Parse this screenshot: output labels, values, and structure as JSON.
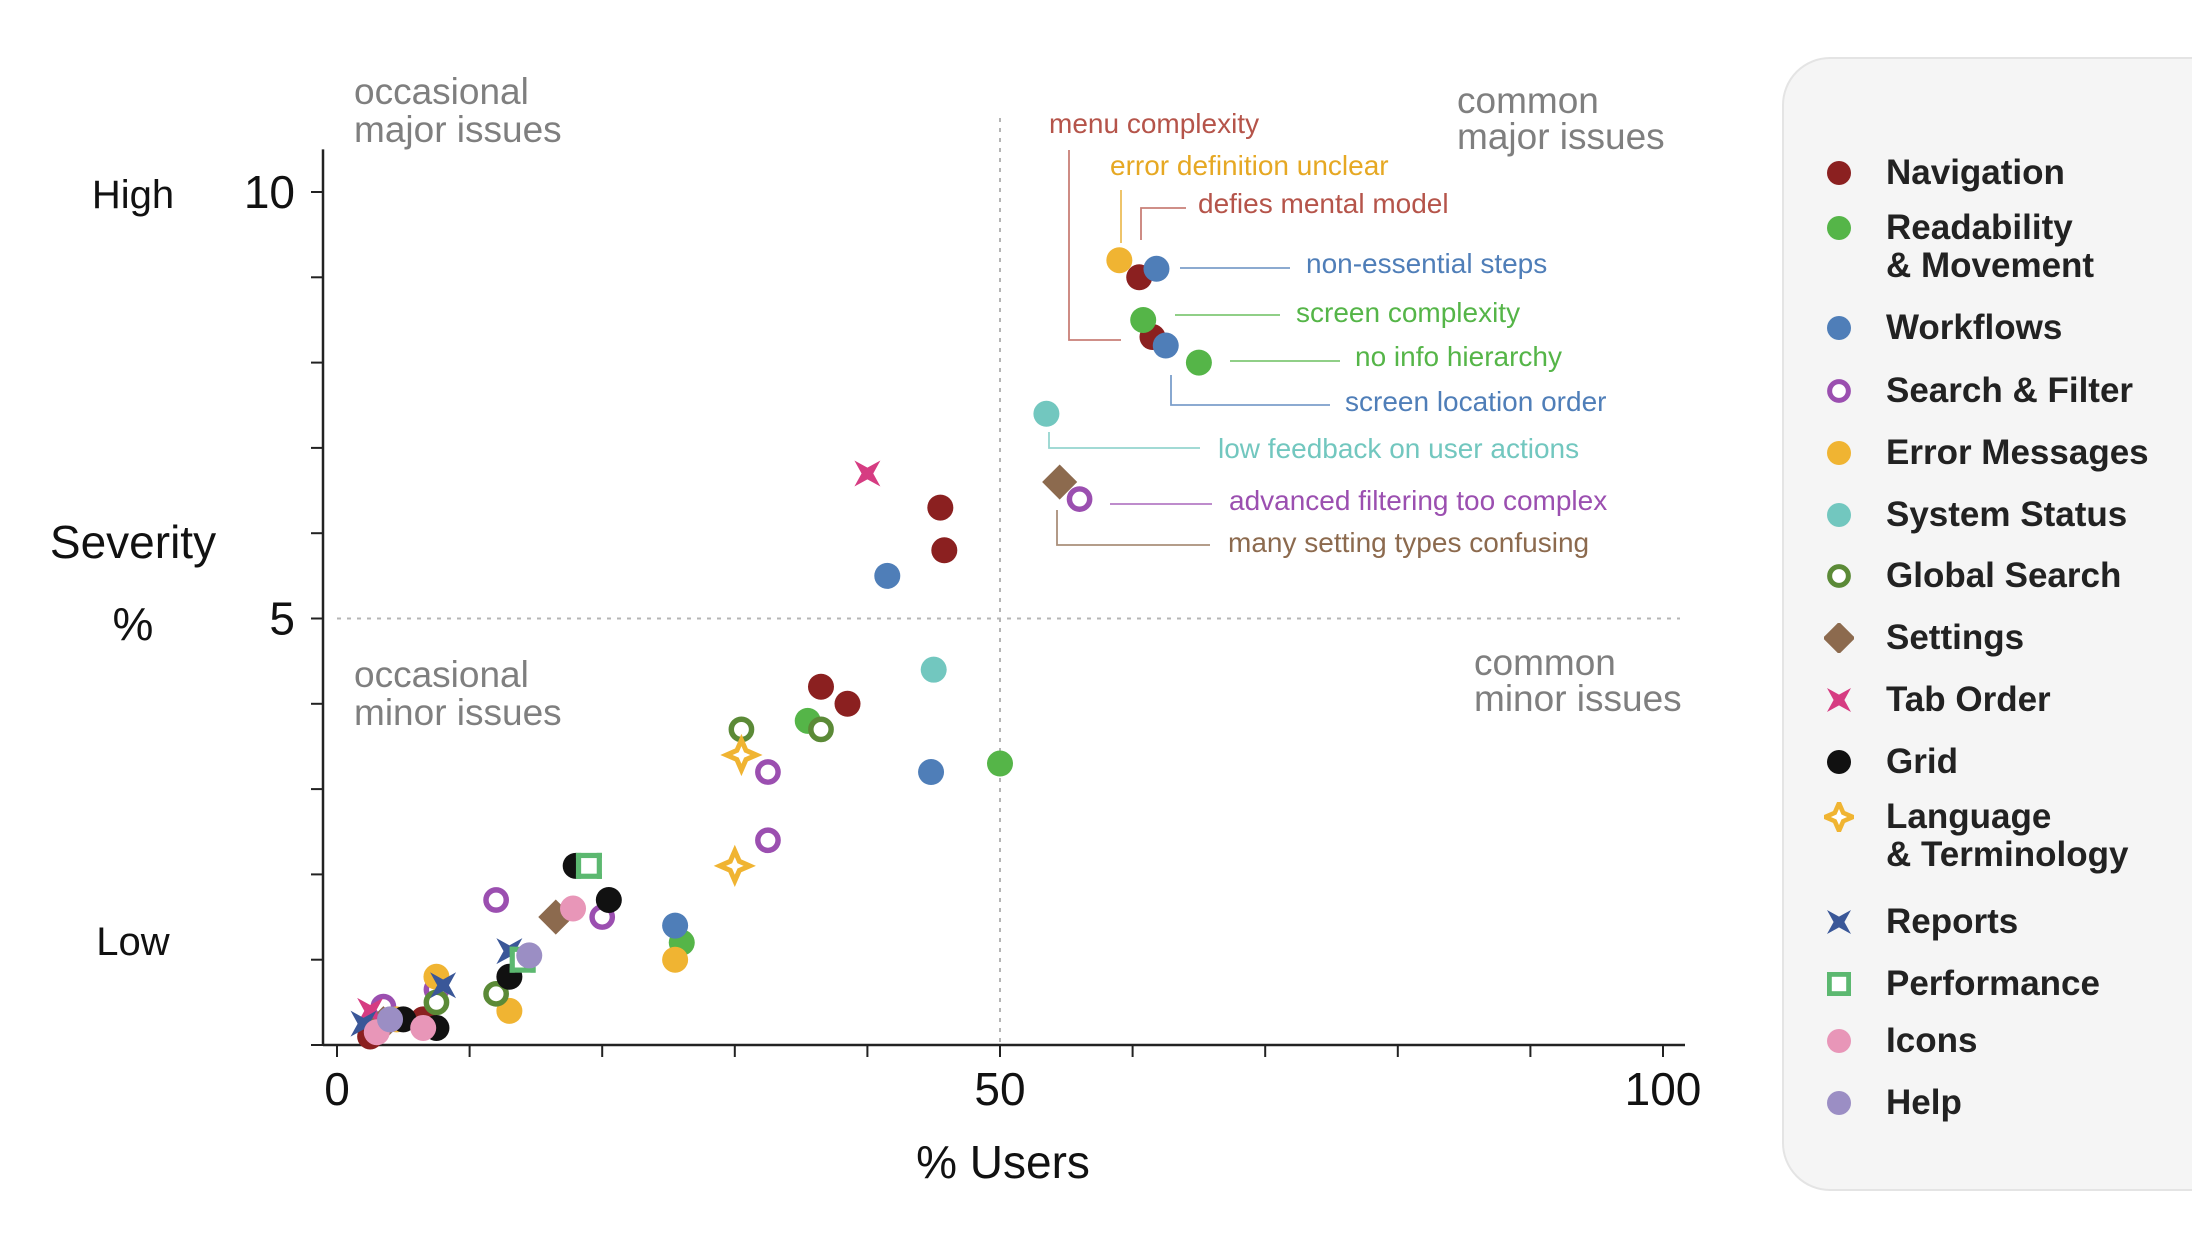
{
  "chart_data": {
    "type": "scatter",
    "xlabel": "% Users",
    "ylabel": "Severity",
    "ylabel_unit": "%",
    "xlim": [
      0,
      100
    ],
    "ylim": [
      0,
      10.5
    ],
    "xticks": [
      "0",
      "50",
      "100"
    ],
    "yticks": [
      "5",
      "10"
    ],
    "y_level_labels": {
      "high": "High",
      "low": "Low"
    },
    "grid": false,
    "reference_lines": {
      "x": 50,
      "y": 5
    },
    "legend_position": "right",
    "quadrant_labels": {
      "top_left": "occasional\nmajor issues",
      "top_right": "common\nmajor issues",
      "bottom_left": "occasional\nminor issues",
      "bottom_right": "common\nminor issues"
    },
    "series": [
      {
        "name": "Navigation",
        "marker": "circle",
        "color": "#8b2020",
        "points": [
          [
            60.5,
            9.0
          ],
          [
            61.5,
            8.3
          ],
          [
            45.5,
            6.3
          ],
          [
            45.8,
            5.8
          ],
          [
            36.5,
            4.2
          ],
          [
            38.5,
            4.0
          ],
          [
            6.5,
            0.3
          ],
          [
            2.5,
            0.1
          ]
        ]
      },
      {
        "name": "Readability\n& Movement",
        "marker": "circle",
        "color": "#55b548",
        "points": [
          [
            60.8,
            8.5
          ],
          [
            65.0,
            8.0
          ],
          [
            35.5,
            3.8
          ],
          [
            50.0,
            3.3
          ],
          [
            26.0,
            1.2
          ]
        ]
      },
      {
        "name": "Workflows",
        "marker": "circle",
        "color": "#4f7eb8",
        "points": [
          [
            61.8,
            9.1
          ],
          [
            62.5,
            8.2
          ],
          [
            41.5,
            5.5
          ],
          [
            44.8,
            3.2
          ],
          [
            25.5,
            1.4
          ]
        ]
      },
      {
        "name": "Search & Filter",
        "marker": "ring",
        "color": "#9b4fb0",
        "points": [
          [
            56.0,
            6.4
          ],
          [
            32.5,
            3.2
          ],
          [
            32.5,
            2.4
          ],
          [
            12.0,
            1.7
          ],
          [
            20.0,
            1.5
          ],
          [
            3.5,
            0.45
          ],
          [
            7.5,
            0.65
          ]
        ]
      },
      {
        "name": "Error Messages",
        "marker": "circle",
        "color": "#f0b432",
        "points": [
          [
            59.0,
            9.2
          ],
          [
            25.5,
            1.0
          ],
          [
            7.5,
            0.8
          ],
          [
            13.0,
            0.4
          ],
          [
            4.5,
            0.3
          ]
        ]
      },
      {
        "name": "System Status",
        "marker": "circle",
        "color": "#72c7bf",
        "points": [
          [
            53.5,
            7.4
          ],
          [
            45.0,
            4.4
          ]
        ]
      },
      {
        "name": "Global Search",
        "marker": "ring",
        "color": "#5b8a37",
        "points": [
          [
            30.5,
            3.7
          ],
          [
            36.5,
            3.7
          ],
          [
            12.0,
            0.6
          ],
          [
            7.5,
            0.5
          ]
        ]
      },
      {
        "name": "Settings",
        "marker": "diamond",
        "color": "#8c6a4e",
        "points": [
          [
            54.5,
            6.6
          ],
          [
            16.5,
            1.5
          ],
          [
            3.5,
            0.25
          ]
        ]
      },
      {
        "name": "Tab Order",
        "marker": "bowtie",
        "color": "#d63c82",
        "points": [
          [
            40.0,
            6.7
          ],
          [
            2.5,
            0.4
          ]
        ]
      },
      {
        "name": "Grid",
        "marker": "circle",
        "color": "#111111",
        "points": [
          [
            18.0,
            2.1
          ],
          [
            20.5,
            1.7
          ],
          [
            13.0,
            0.8
          ],
          [
            5.0,
            0.3
          ],
          [
            7.5,
            0.2
          ]
        ]
      },
      {
        "name": "Language\n& Terminology",
        "marker": "star4",
        "color": "#f0b432",
        "points": [
          [
            30.5,
            3.4
          ],
          [
            30.0,
            2.1
          ]
        ]
      },
      {
        "name": "Reports",
        "marker": "bowtie",
        "color": "#3a5798",
        "points": [
          [
            13.0,
            1.1
          ],
          [
            8.0,
            0.7
          ],
          [
            2.0,
            0.25
          ]
        ]
      },
      {
        "name": "Performance",
        "marker": "square-ring",
        "color": "#5cb870",
        "points": [
          [
            19.0,
            2.1
          ],
          [
            14.0,
            1.0
          ]
        ]
      },
      {
        "name": "Icons",
        "marker": "circle",
        "color": "#e896b8",
        "points": [
          [
            17.8,
            1.6
          ],
          [
            6.5,
            0.2
          ],
          [
            3.0,
            0.15
          ]
        ]
      },
      {
        "name": "Help",
        "marker": "circle",
        "color": "#9b8ec4",
        "points": [
          [
            14.5,
            1.05
          ],
          [
            4.0,
            0.3
          ]
        ]
      }
    ],
    "annotations": [
      {
        "text": "menu complexity",
        "color": "#b5544a",
        "target": [
          61.5,
          8.3
        ]
      },
      {
        "text": "error definition unclear",
        "color": "#e6a823",
        "target": [
          59.0,
          9.2
        ]
      },
      {
        "text": "defies mental model",
        "color": "#b5544a",
        "target": [
          60.5,
          9.0
        ]
      },
      {
        "text": "non-essential steps",
        "color": "#4f7eb8",
        "target": [
          61.8,
          9.1
        ]
      },
      {
        "text": "screen complexity",
        "color": "#55b548",
        "target": [
          60.8,
          8.5
        ]
      },
      {
        "text": "no info hierarchy",
        "color": "#55b548",
        "target": [
          65.0,
          8.0
        ]
      },
      {
        "text": "screen location order",
        "color": "#4f7eb8",
        "target": [
          62.5,
          8.2
        ]
      },
      {
        "text": "low feedback on user actions",
        "color": "#72c7bf",
        "target": [
          53.5,
          7.4
        ]
      },
      {
        "text": "advanced filtering too complex",
        "color": "#9b4fb0",
        "target": [
          56.0,
          6.4
        ]
      },
      {
        "text": "many setting types confusing",
        "color": "#8c6a4e",
        "target": [
          54.5,
          6.6
        ]
      }
    ]
  }
}
